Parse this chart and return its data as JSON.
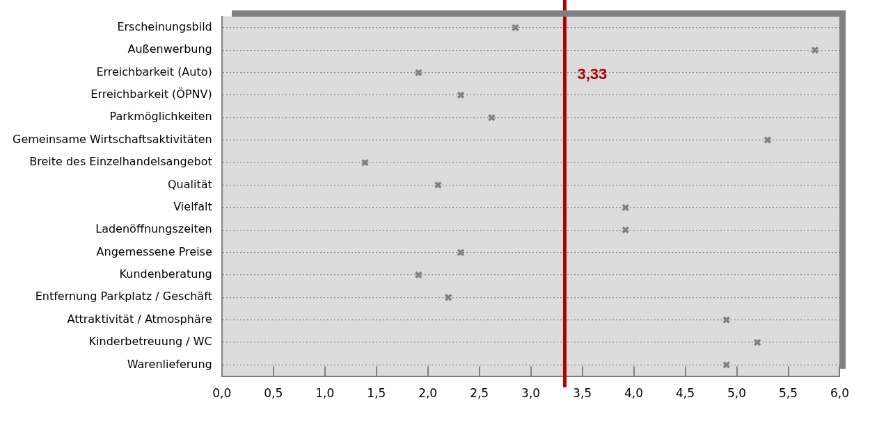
{
  "chart_data": {
    "type": "scatter",
    "orientation": "horizontal",
    "categories": [
      "Erscheinungsbild",
      "Außenwerbung",
      "Erreichbarkeit (Auto)",
      "Erreichbarkeit (ÖPNV)",
      "Parkmöglichkeiten",
      "Gemeinsame Wirtschaftsaktivitäten",
      "Breite des Einzelhandelsangebot",
      "Qualität",
      "Vielfalt",
      "Ladenöffnungszeiten",
      "Angemessene Preise",
      "Kundenberatung",
      "Entfernung Parkplatz / Geschäft",
      "Attraktivität / Atmosphäre",
      "Kinderbetreuung / WC",
      "Warenlieferung"
    ],
    "values": [
      2.85,
      5.76,
      1.91,
      2.32,
      2.62,
      5.3,
      1.39,
      2.1,
      3.92,
      3.92,
      2.32,
      1.91,
      2.2,
      4.9,
      5.2,
      4.9
    ],
    "color": "#808080",
    "marker": "cross",
    "grid": "y",
    "legend": false,
    "xlim": [
      0,
      6
    ],
    "xticks": [
      {
        "value": 0,
        "label": "0,0"
      },
      {
        "value": 0.5,
        "label": "0,5"
      },
      {
        "value": 1,
        "label": "1,0"
      },
      {
        "value": 1.5,
        "label": "1,5"
      },
      {
        "value": 2,
        "label": "2,0"
      },
      {
        "value": 2.5,
        "label": "2,5"
      },
      {
        "value": 3,
        "label": "3,0"
      },
      {
        "value": 3.5,
        "label": "3,5"
      },
      {
        "value": 4,
        "label": "4,0"
      },
      {
        "value": 4.5,
        "label": "4,5"
      },
      {
        "value": 5,
        "label": "5,0"
      },
      {
        "value": 5.5,
        "label": "5,5"
      },
      {
        "value": 6,
        "label": "6,0"
      }
    ],
    "ref_lines": [
      {
        "axis": "x",
        "value": 3.33,
        "label": "3,33",
        "color": "#b00000"
      }
    ]
  }
}
